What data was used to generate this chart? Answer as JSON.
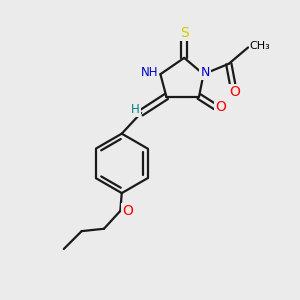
{
  "background_color": "#ebebeb",
  "atom_colors": {
    "N": "#0000cc",
    "O": "#ff0000",
    "S": "#cccc00",
    "C": "#000000",
    "H": "#008080"
  },
  "bond_color": "#1a1a1a",
  "bond_width": 1.6,
  "figsize": [
    3.0,
    3.0
  ],
  "dpi": 100
}
